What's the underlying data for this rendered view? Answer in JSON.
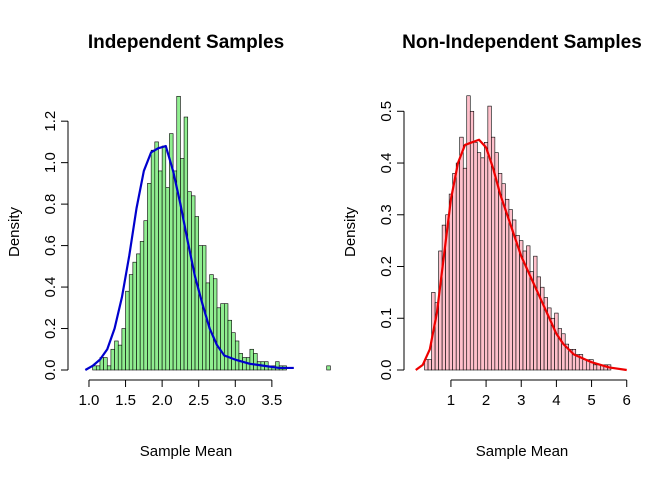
{
  "chart_data": [
    {
      "type": "histogram",
      "title": "Independent Samples",
      "xlabel": "Sample Mean",
      "ylabel": "Density",
      "x_ticks": [
        1.0,
        1.5,
        2.0,
        2.5,
        3.0,
        3.5
      ],
      "x_tick_labels": [
        "1.0",
        "1.5",
        "2.0",
        "2.5",
        "3.0",
        "3.5"
      ],
      "y_ticks": [
        0.0,
        0.2,
        0.4,
        0.6,
        0.8,
        1.0,
        1.2
      ],
      "y_tick_labels": [
        "0.0",
        "0.2",
        "0.4",
        "0.6",
        "0.8",
        "1.0",
        "1.2"
      ],
      "xlim": [
        0.85,
        3.83
      ],
      "ylim": [
        0,
        1.36
      ],
      "bar_fill": "#90ee90",
      "curve_color": "#0000cd",
      "bins": {
        "start": 1.05,
        "width": 0.05,
        "values": [
          0.02,
          0.02,
          0.06,
          0.06,
          0.02,
          0.1,
          0.14,
          0.12,
          0.2,
          0.38,
          0.46,
          0.52,
          0.56,
          0.62,
          0.72,
          0.9,
          1.06,
          1.1,
          0.96,
          1.08,
          0.88,
          1.14,
          0.96,
          1.32,
          1.02,
          1.22,
          0.86,
          0.84,
          0.74,
          0.6,
          0.6,
          0.42,
          0.46,
          0.44,
          0.3,
          0.32,
          0.32,
          0.24,
          0.18,
          0.14,
          0.08,
          0.06,
          0.06,
          0.1,
          0.08,
          0.04,
          0.04,
          0.04,
          0.02,
          0.02,
          0.04,
          0.02,
          0.02,
          0.0,
          0.0,
          0.0,
          0.0,
          0.0,
          0.0,
          0.0,
          0.0,
          0.0,
          0.0,
          0.0,
          0.02
        ]
      },
      "density_curve": {
        "x": [
          0.95,
          1.05,
          1.15,
          1.25,
          1.35,
          1.45,
          1.55,
          1.65,
          1.75,
          1.85,
          1.95,
          2.05,
          2.15,
          2.25,
          2.35,
          2.45,
          2.55,
          2.65,
          2.75,
          2.85,
          3.0,
          3.2,
          3.4,
          3.6,
          3.8
        ],
        "y": [
          0.0,
          0.02,
          0.05,
          0.1,
          0.2,
          0.35,
          0.55,
          0.78,
          0.96,
          1.05,
          1.07,
          1.08,
          0.96,
          0.8,
          0.62,
          0.45,
          0.32,
          0.2,
          0.12,
          0.07,
          0.05,
          0.03,
          0.02,
          0.01,
          0.01
        ]
      }
    },
    {
      "type": "histogram",
      "title": "Non-Independent Samples",
      "xlabel": "Sample Mean",
      "ylabel": "Density",
      "x_ticks": [
        1,
        2,
        3,
        4,
        5,
        6
      ],
      "x_tick_labels": [
        "1",
        "2",
        "3",
        "4",
        "5",
        "6"
      ],
      "y_ticks": [
        0.0,
        0.1,
        0.2,
        0.3,
        0.4,
        0.5
      ],
      "y_tick_labels": [
        "0.0",
        "0.1",
        "0.2",
        "0.3",
        "0.4",
        "0.5"
      ],
      "xlim": [
        -0.05,
        6.15
      ],
      "ylim": [
        0,
        0.545
      ],
      "bar_fill": "#ffc0cb",
      "curve_color": "#ee0000",
      "bins": {
        "start": 0.25,
        "width": 0.1,
        "values": [
          0.02,
          0.02,
          0.15,
          0.13,
          0.23,
          0.28,
          0.3,
          0.34,
          0.38,
          0.4,
          0.45,
          0.39,
          0.53,
          0.5,
          0.44,
          0.42,
          0.41,
          0.44,
          0.51,
          0.45,
          0.42,
          0.38,
          0.36,
          0.33,
          0.31,
          0.29,
          0.26,
          0.25,
          0.23,
          0.24,
          0.19,
          0.22,
          0.18,
          0.16,
          0.14,
          0.12,
          0.1,
          0.11,
          0.08,
          0.07,
          0.05,
          0.04,
          0.04,
          0.03,
          0.03,
          0.02,
          0.02,
          0.02,
          0.01,
          0.01,
          0.01,
          0.01,
          0.01,
          0.0,
          0.0
        ]
      },
      "density_curve": {
        "x": [
          0.0,
          0.2,
          0.4,
          0.6,
          0.8,
          1.0,
          1.2,
          1.4,
          1.6,
          1.8,
          2.0,
          2.2,
          2.4,
          2.6,
          2.8,
          3.0,
          3.2,
          3.4,
          3.6,
          3.8,
          4.0,
          4.2,
          4.5,
          5.0,
          5.5,
          6.0
        ],
        "y": [
          0.0,
          0.01,
          0.04,
          0.11,
          0.22,
          0.33,
          0.4,
          0.435,
          0.44,
          0.445,
          0.43,
          0.39,
          0.34,
          0.3,
          0.26,
          0.22,
          0.19,
          0.16,
          0.13,
          0.1,
          0.07,
          0.05,
          0.03,
          0.015,
          0.005,
          0.0
        ]
      }
    }
  ]
}
